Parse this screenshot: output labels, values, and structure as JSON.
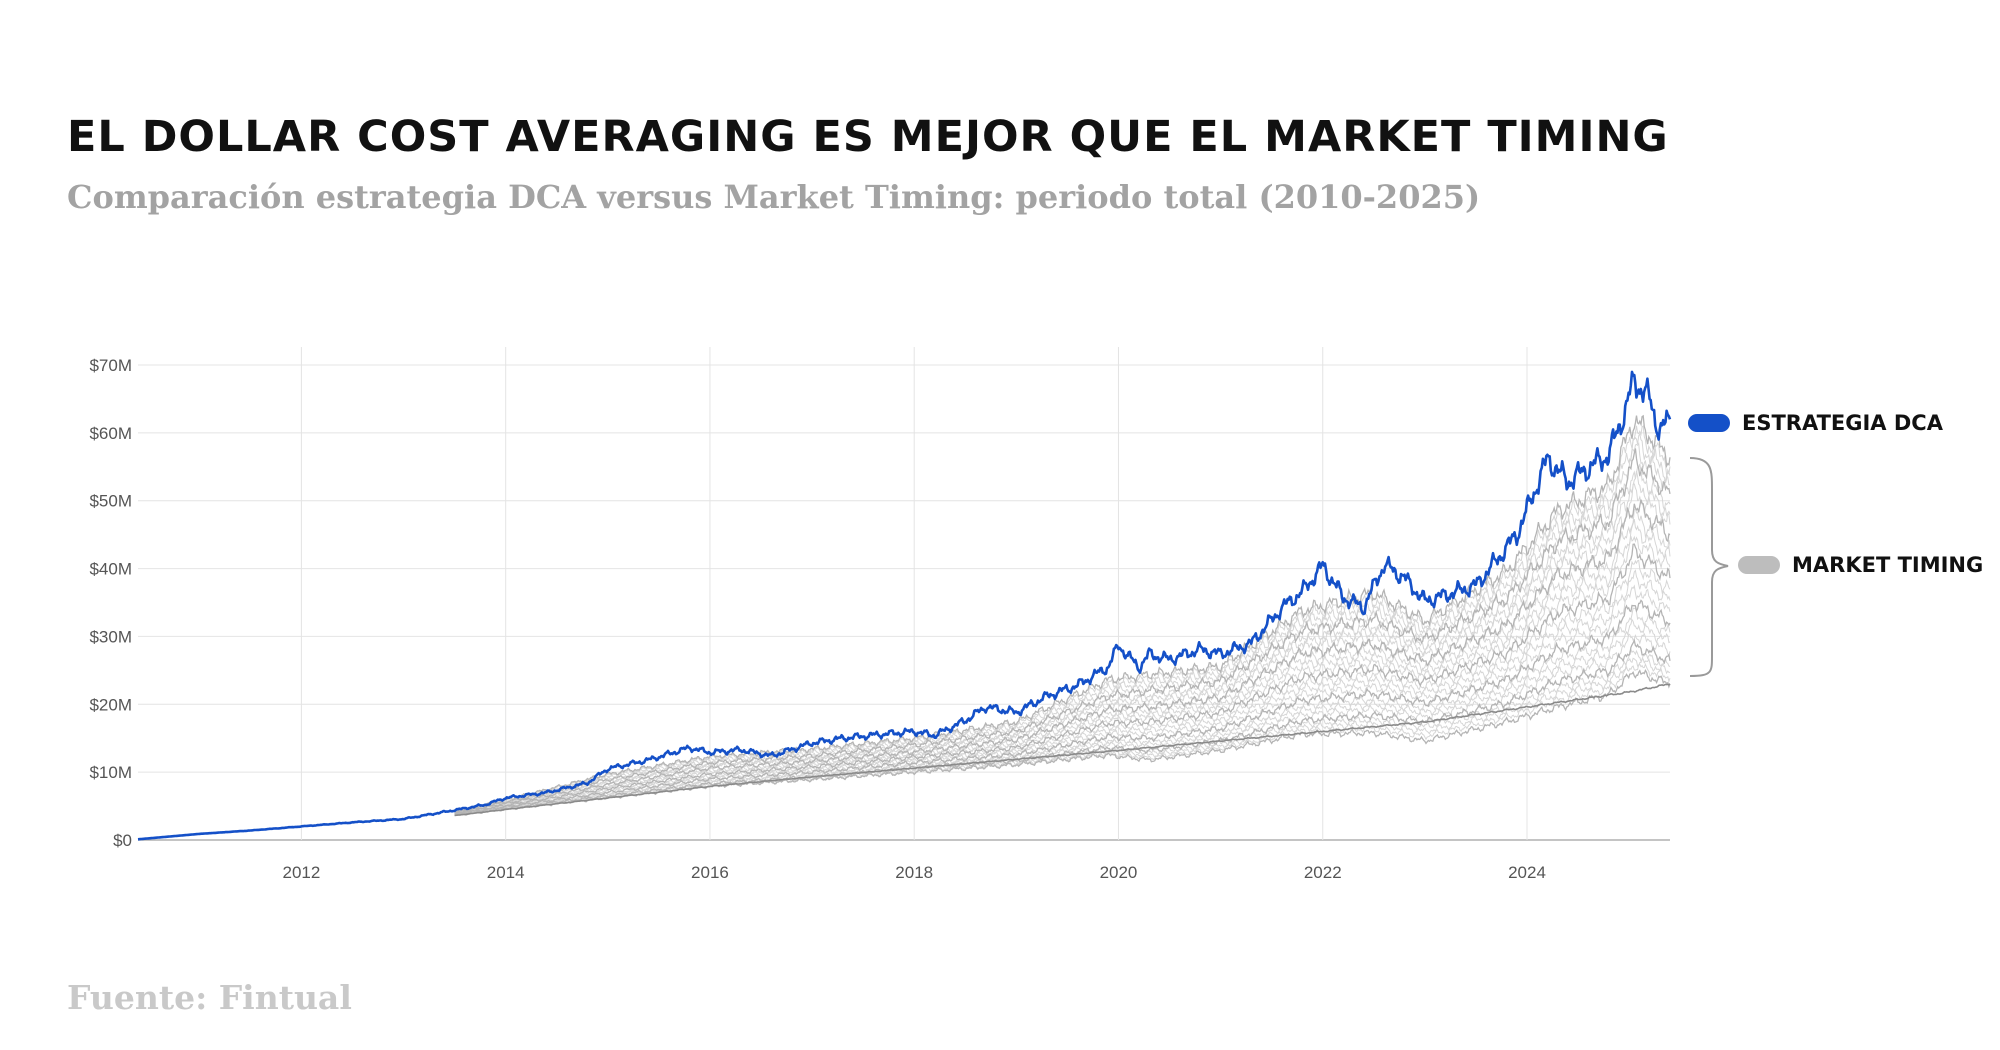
{
  "header": {
    "title": "EL DOLLAR COST AVERAGING ES MEJOR QUE EL MARKET TIMING",
    "subtitle": "Comparación estrategia DCA versus Market Timing: periodo total (2010-2025)"
  },
  "footer": {
    "source": "Fuente: Fintual"
  },
  "chart_data": {
    "type": "line",
    "title": "EL DOLLAR COST AVERAGING ES MEJOR QUE EL MARKET TIMING",
    "subtitle": "Comparación estrategia DCA versus Market Timing: periodo total (2010-2025)",
    "xlabel": "",
    "ylabel": "",
    "xlim": [
      2010.4,
      2025.4
    ],
    "ylim": [
      0,
      70
    ],
    "x_ticks": [
      2012,
      2014,
      2016,
      2018,
      2020,
      2022,
      2024
    ],
    "x_tick_labels": [
      "2012",
      "2014",
      "2016",
      "2018",
      "2020",
      "2022",
      "2024"
    ],
    "y_ticks": [
      0,
      10,
      20,
      30,
      40,
      50,
      60,
      70
    ],
    "y_tick_labels": [
      "$0",
      "$10M",
      "$20M",
      "$30M",
      "$40M",
      "$50M",
      "$60M",
      "$70M"
    ],
    "grid": true,
    "legend_position": "right",
    "colors": {
      "dca": "#1450c8",
      "timing": "#b4b4b4",
      "baseline": "#8a8a8a"
    },
    "legend": [
      {
        "name": "ESTRATEGIA DCA",
        "color": "#1450c8"
      },
      {
        "name": "MARKET TIMING",
        "color": "#bdbdbd"
      }
    ],
    "series": [
      {
        "name": "ESTRATEGIA DCA",
        "role": "dca",
        "x": [
          2010.4,
          2011.0,
          2011.5,
          2012.0,
          2012.5,
          2013.0,
          2013.5,
          2013.8,
          2014.0,
          2014.4,
          2014.8,
          2015.0,
          2015.4,
          2015.8,
          2016.0,
          2016.3,
          2016.6,
          2017.0,
          2017.3,
          2017.7,
          2018.0,
          2018.2,
          2018.5,
          2018.7,
          2019.0,
          2019.3,
          2019.6,
          2019.9,
          2020.0,
          2020.2,
          2020.3,
          2020.5,
          2020.8,
          2021.0,
          2021.3,
          2021.6,
          2021.8,
          2022.0,
          2022.2,
          2022.4,
          2022.6,
          2022.8,
          2023.0,
          2023.2,
          2023.5,
          2023.7,
          2023.9,
          2024.0,
          2024.2,
          2024.4,
          2024.6,
          2024.8,
          2024.95,
          2025.05,
          2025.2,
          2025.3,
          2025.4
        ],
        "values": [
          0.1,
          0.9,
          1.4,
          2.0,
          2.6,
          3.1,
          4.4,
          5.2,
          6.2,
          7.0,
          8.4,
          10.5,
          11.8,
          13.6,
          12.9,
          13.3,
          12.4,
          14.3,
          15.0,
          15.6,
          16.0,
          15.4,
          17.6,
          19.6,
          18.8,
          21.2,
          22.8,
          25.5,
          28.7,
          25.4,
          27.4,
          26.6,
          28.1,
          27.4,
          29.0,
          34.2,
          36.6,
          40.4,
          35.8,
          34.2,
          40.6,
          38.6,
          35.2,
          36.1,
          37.5,
          41.2,
          45.0,
          48.6,
          56.2,
          52.8,
          54.8,
          56.8,
          62.8,
          67.8,
          65.0,
          60.2,
          62.0
        ]
      },
      {
        "name": "",
        "role": "timing",
        "x": [
          2013.5,
          2014.0,
          2015.0,
          2016.0,
          2017.0,
          2018.0,
          2019.0,
          2019.9,
          2020.3,
          2021.0,
          2021.8,
          2022.5,
          2023.0,
          2023.8,
          2024.3,
          2024.8,
          2025.05,
          2025.4
        ],
        "values": [
          4.2,
          5.9,
          9.7,
          12.3,
          13.4,
          15.0,
          17.4,
          23.6,
          24.4,
          25.6,
          33.8,
          36.4,
          32.3,
          39.6,
          48.5,
          52.2,
          62.0,
          56.4
        ]
      },
      {
        "name": "",
        "role": "timing",
        "x": [
          2013.5,
          2014.0,
          2015.0,
          2016.0,
          2017.0,
          2018.0,
          2019.0,
          2019.9,
          2020.3,
          2021.0,
          2021.8,
          2022.5,
          2023.0,
          2023.8,
          2024.3,
          2024.8,
          2025.05,
          2025.4
        ],
        "values": [
          4.1,
          5.6,
          8.9,
          11.4,
          12.4,
          14.0,
          16.0,
          21.2,
          22.0,
          23.4,
          30.8,
          32.5,
          29.5,
          35.6,
          44.0,
          47.0,
          56.0,
          51.0
        ]
      },
      {
        "name": "",
        "role": "timing",
        "x": [
          2013.5,
          2014.0,
          2015.0,
          2016.0,
          2017.0,
          2018.0,
          2019.0,
          2019.9,
          2020.3,
          2021.0,
          2021.8,
          2022.5,
          2023.0,
          2023.8,
          2024.3,
          2024.8,
          2025.05,
          2025.4
        ],
        "values": [
          4.0,
          5.4,
          8.2,
          10.6,
          11.6,
          13.0,
          14.8,
          19.2,
          19.6,
          21.0,
          27.6,
          28.8,
          26.4,
          31.6,
          39.0,
          41.5,
          49.5,
          45.0
        ]
      },
      {
        "name": "",
        "role": "timing",
        "x": [
          2013.5,
          2014.0,
          2015.0,
          2016.0,
          2017.0,
          2018.0,
          2019.0,
          2019.9,
          2020.3,
          2021.0,
          2021.8,
          2022.5,
          2023.0,
          2023.8,
          2024.3,
          2024.8,
          2025.05,
          2025.4
        ],
        "values": [
          3.9,
          5.1,
          7.6,
          9.7,
          10.8,
          12.2,
          13.6,
          17.2,
          17.4,
          18.8,
          24.0,
          25.2,
          23.4,
          27.6,
          33.5,
          35.6,
          42.5,
          38.6
        ]
      },
      {
        "name": "",
        "role": "timing",
        "x": [
          2013.5,
          2014.0,
          2015.0,
          2016.0,
          2017.0,
          2018.0,
          2019.0,
          2019.9,
          2020.3,
          2021.0,
          2021.8,
          2022.5,
          2023.0,
          2023.8,
          2024.3,
          2024.8,
          2025.05,
          2025.4
        ],
        "values": [
          3.8,
          4.9,
          7.0,
          9.0,
          10.0,
          11.4,
          12.6,
          15.2,
          15.0,
          16.4,
          20.6,
          21.6,
          20.2,
          23.6,
          28.0,
          29.8,
          35.0,
          32.0
        ]
      },
      {
        "name": "",
        "role": "timing",
        "x": [
          2013.5,
          2014.0,
          2015.0,
          2016.0,
          2017.0,
          2018.0,
          2019.0,
          2019.9,
          2020.3,
          2021.0,
          2021.8,
          2022.5,
          2023.0,
          2023.8,
          2024.3,
          2024.8,
          2025.05,
          2025.4
        ],
        "values": [
          3.7,
          4.7,
          6.5,
          8.3,
          9.3,
          10.6,
          11.7,
          13.6,
          13.2,
          14.6,
          17.6,
          18.4,
          17.4,
          20.2,
          23.4,
          25.0,
          28.6,
          26.4
        ]
      },
      {
        "name": "",
        "role": "timing",
        "x": [
          2013.5,
          2014.0,
          2015.0,
          2016.0,
          2017.0,
          2018.0,
          2019.0,
          2019.9,
          2020.3,
          2021.0,
          2021.8,
          2022.5,
          2023.0,
          2023.8,
          2024.3,
          2024.8,
          2025.05,
          2025.4
        ],
        "values": [
          3.6,
          4.5,
          6.2,
          7.9,
          8.9,
          10.0,
          11.1,
          12.5,
          11.8,
          13.2,
          15.6,
          15.8,
          14.6,
          17.4,
          19.6,
          21.4,
          24.8,
          23.0
        ]
      },
      {
        "name": "",
        "role": "baseline",
        "x": [
          2013.5,
          2014.0,
          2015.0,
          2016.0,
          2017.0,
          2018.0,
          2019.0,
          2020.0,
          2021.0,
          2022.0,
          2023.0,
          2024.0,
          2025.0,
          2025.4
        ],
        "values": [
          3.6,
          4.5,
          6.2,
          7.9,
          9.3,
          10.6,
          11.9,
          13.2,
          14.6,
          16.0,
          17.4,
          19.6,
          21.8,
          23.0
        ]
      }
    ]
  }
}
